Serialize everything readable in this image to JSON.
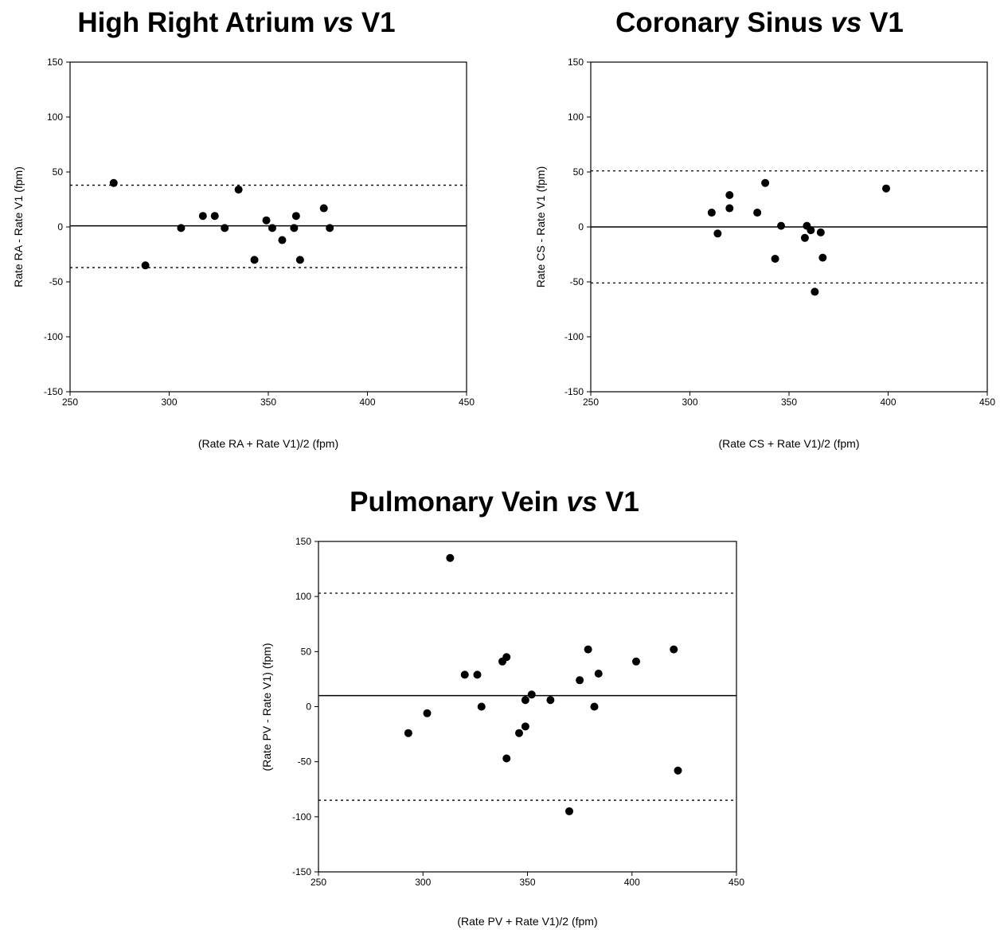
{
  "chart_data": [
    {
      "type": "scatter",
      "title": "High Right Atrium",
      "title_italic": "vs",
      "title_suffix": "V1",
      "xlabel": "(Rate RA + Rate V1)/2 (fpm)",
      "ylabel": "Rate RA - Rate V1 (fpm)",
      "xlim": [
        250,
        450
      ],
      "ylim": [
        -150,
        150
      ],
      "xticks": [
        250,
        300,
        350,
        400,
        450
      ],
      "yticks": [
        150,
        100,
        50,
        0,
        -50,
        -100,
        -150
      ],
      "grid": false,
      "mean_line": 1,
      "limits_of_agreement": [
        38,
        -37
      ],
      "points": [
        [
          272,
          40
        ],
        [
          288,
          -35
        ],
        [
          306,
          -1
        ],
        [
          317,
          10
        ],
        [
          323,
          10
        ],
        [
          328,
          -1
        ],
        [
          335,
          34
        ],
        [
          343,
          -30
        ],
        [
          349,
          6
        ],
        [
          352,
          -1
        ],
        [
          357,
          -12
        ],
        [
          363,
          -1
        ],
        [
          364,
          10
        ],
        [
          366,
          -30
        ],
        [
          378,
          17
        ],
        [
          381,
          -1
        ]
      ]
    },
    {
      "type": "scatter",
      "title": "Coronary Sinus",
      "title_italic": "vs",
      "title_suffix": "V1",
      "xlabel": "(Rate CS + Rate V1)/2 (fpm)",
      "ylabel": "Rate CS - Rate V1 (fpm)",
      "xlim": [
        250,
        450
      ],
      "ylim": [
        -150,
        150
      ],
      "xticks": [
        250,
        300,
        350,
        400,
        450
      ],
      "yticks": [
        150,
        100,
        50,
        0,
        -50,
        -100,
        -150
      ],
      "grid": false,
      "mean_line": 0,
      "limits_of_agreement": [
        51,
        -51
      ],
      "points": [
        [
          311,
          13
        ],
        [
          314,
          -6
        ],
        [
          320,
          29
        ],
        [
          320,
          17
        ],
        [
          334,
          13
        ],
        [
          338,
          40
        ],
        [
          343,
          -29
        ],
        [
          346,
          1
        ],
        [
          358,
          -10
        ],
        [
          359,
          1
        ],
        [
          361,
          -3
        ],
        [
          363,
          -59
        ],
        [
          366,
          -5
        ],
        [
          367,
          -28
        ],
        [
          399,
          35
        ]
      ]
    },
    {
      "type": "scatter",
      "title": "Pulmonary Vein",
      "title_italic": "vs",
      "title_suffix": "V1",
      "xlabel": "(Rate PV + Rate V1)/2 (fpm)",
      "ylabel": "(Rate PV - Rate V1) (fpm)",
      "xlim": [
        250,
        450
      ],
      "ylim": [
        -150,
        150
      ],
      "xticks": [
        250,
        300,
        350,
        400,
        450
      ],
      "yticks": [
        150,
        100,
        50,
        0,
        -50,
        -100,
        -150
      ],
      "grid": false,
      "mean_line": 10,
      "limits_of_agreement": [
        103,
        -85
      ],
      "points": [
        [
          293,
          -24
        ],
        [
          302,
          -6
        ],
        [
          313,
          135
        ],
        [
          320,
          29
        ],
        [
          326,
          29
        ],
        [
          328,
          0
        ],
        [
          338,
          41
        ],
        [
          340,
          45
        ],
        [
          340,
          -47
        ],
        [
          346,
          -24
        ],
        [
          349,
          -18
        ],
        [
          349,
          6
        ],
        [
          352,
          11
        ],
        [
          361,
          6
        ],
        [
          370,
          -95
        ],
        [
          375,
          24
        ],
        [
          379,
          52
        ],
        [
          382,
          0
        ],
        [
          384,
          30
        ],
        [
          402,
          41
        ],
        [
          420,
          52
        ],
        [
          422,
          -58
        ]
      ]
    }
  ]
}
